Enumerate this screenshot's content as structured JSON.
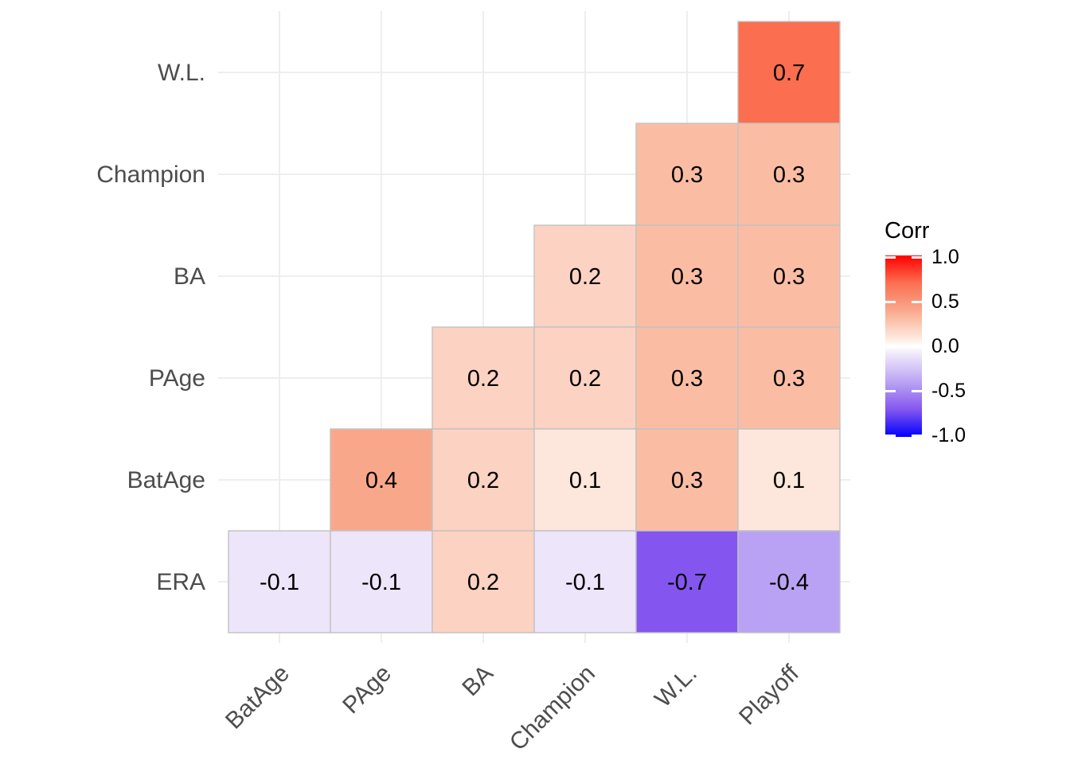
{
  "chart_data": {
    "type": "heatmap",
    "subtype": "correlation-matrix-upper-triangle",
    "title": "",
    "legend_title": "Corr",
    "x_categories": [
      "BatAge",
      "PAge",
      "BA",
      "Champion",
      "W.L.",
      "Playoff"
    ],
    "y_categories": [
      "W.L.",
      "Champion",
      "BA",
      "PAge",
      "BatAge",
      "ERA"
    ],
    "cells": [
      {
        "row": "W.L.",
        "col": "Playoff",
        "value": 0.7,
        "label": "0.7"
      },
      {
        "row": "Champion",
        "col": "W.L.",
        "value": 0.3,
        "label": "0.3"
      },
      {
        "row": "Champion",
        "col": "Playoff",
        "value": 0.3,
        "label": "0.3"
      },
      {
        "row": "BA",
        "col": "Champion",
        "value": 0.2,
        "label": "0.2"
      },
      {
        "row": "BA",
        "col": "W.L.",
        "value": 0.3,
        "label": "0.3"
      },
      {
        "row": "BA",
        "col": "Playoff",
        "value": 0.3,
        "label": "0.3"
      },
      {
        "row": "PAge",
        "col": "BA",
        "value": 0.2,
        "label": "0.2"
      },
      {
        "row": "PAge",
        "col": "Champion",
        "value": 0.2,
        "label": "0.2"
      },
      {
        "row": "PAge",
        "col": "W.L.",
        "value": 0.3,
        "label": "0.3"
      },
      {
        "row": "PAge",
        "col": "Playoff",
        "value": 0.3,
        "label": "0.3"
      },
      {
        "row": "BatAge",
        "col": "PAge",
        "value": 0.4,
        "label": "0.4"
      },
      {
        "row": "BatAge",
        "col": "BA",
        "value": 0.2,
        "label": "0.2"
      },
      {
        "row": "BatAge",
        "col": "Champion",
        "value": 0.1,
        "label": "0.1"
      },
      {
        "row": "BatAge",
        "col": "W.L.",
        "value": 0.3,
        "label": "0.3"
      },
      {
        "row": "BatAge",
        "col": "Playoff",
        "value": 0.1,
        "label": "0.1"
      },
      {
        "row": "ERA",
        "col": "BatAge",
        "value": -0.1,
        "label": "-0.1"
      },
      {
        "row": "ERA",
        "col": "PAge",
        "value": -0.1,
        "label": "-0.1"
      },
      {
        "row": "ERA",
        "col": "BA",
        "value": 0.2,
        "label": "0.2"
      },
      {
        "row": "ERA",
        "col": "Champion",
        "value": -0.1,
        "label": "-0.1"
      },
      {
        "row": "ERA",
        "col": "W.L.",
        "value": -0.7,
        "label": "-0.7"
      },
      {
        "row": "ERA",
        "col": "Playoff",
        "value": -0.4,
        "label": "-0.4"
      }
    ],
    "palette": {
      "1": "#FF0000",
      "0.7": "#FC6E50",
      "0.4": "#F9A78B",
      "0.3": "#FABDA4",
      "0.2": "#FCD2C2",
      "0.1": "#FDE6DB",
      "0": "#FFFFFF",
      "-0.1": "#EDE5FA",
      "-0.4": "#B9A2F3",
      "-0.7": "#8456EF",
      "-1": "#0000FF"
    },
    "colorbar": {
      "title": "Corr",
      "range": [
        -1,
        1
      ],
      "ticks": [
        {
          "label": "1.0",
          "value": 1
        },
        {
          "label": "0.5",
          "value": 0.5
        },
        {
          "label": "0.0",
          "value": 0
        },
        {
          "label": "-0.5",
          "value": -0.5
        },
        {
          "label": "-1.0",
          "value": -1
        }
      ],
      "gradient_stops": [
        {
          "pos": 0,
          "color": "#FF0000"
        },
        {
          "pos": 15,
          "color": "#FC6E50"
        },
        {
          "pos": 30,
          "color": "#F9A78B"
        },
        {
          "pos": 35,
          "color": "#FABDA4"
        },
        {
          "pos": 40,
          "color": "#FCD2C2"
        },
        {
          "pos": 45,
          "color": "#FDE6DB"
        },
        {
          "pos": 50,
          "color": "#FFFFFF"
        },
        {
          "pos": 55,
          "color": "#EDE5FA"
        },
        {
          "pos": 70,
          "color": "#B9A2F3"
        },
        {
          "pos": 85,
          "color": "#8456EF"
        },
        {
          "pos": 100,
          "color": "#0000FF"
        }
      ]
    },
    "style": {
      "background": "#FFFFFF",
      "grid_color": "#EBEBEB",
      "cell_border_color": "#C2C2C2",
      "axis_text_color": "#4D4D4D",
      "value_text_color": "#000000",
      "legend_text_color": "#000000"
    },
    "layout_hints": {
      "grid": true,
      "legend_position": "right",
      "x_label_angle_deg": 45
    }
  }
}
